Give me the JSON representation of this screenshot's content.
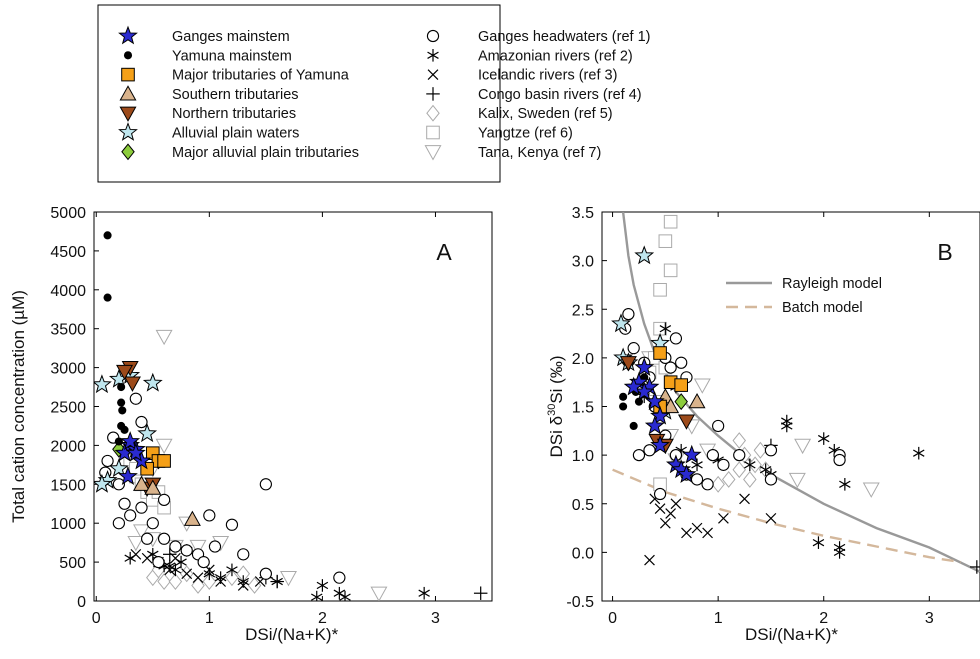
{
  "chart_data": [
    {
      "type": "scatter",
      "panel_label": "A",
      "xlabel": "DSi/(Na+K)*",
      "ylabel": "Total cation concentration (µM)",
      "xlim": [
        -0.02,
        3.5
      ],
      "ylim": [
        0,
        5000
      ],
      "xticks": [
        0,
        1,
        2,
        3
      ],
      "yticks": [
        0,
        500,
        1000,
        1500,
        2000,
        2500,
        3000,
        3500,
        4000,
        4500,
        5000
      ],
      "series": [
        {
          "name": "Ganges mainstem",
          "color": "#2a2ad0",
          "marker": "star",
          "x": [
            0.3,
            0.35,
            0.25,
            0.28,
            0.4,
            0.3,
            0.35
          ],
          "values": [
            2000,
            1950,
            1900,
            1600,
            1800,
            2050,
            1900
          ]
        },
        {
          "name": "Yamuna mainstem",
          "color": "#000000",
          "marker": "dot",
          "x": [
            0.1,
            0.1,
            0.22,
            0.22,
            0.23,
            0.22,
            0.25,
            0.2,
            0.28
          ],
          "values": [
            4700,
            3900,
            2750,
            2550,
            2450,
            2250,
            2200,
            2050,
            2000
          ]
        },
        {
          "name": "Major tributaries of Yamuna",
          "color": "#f5a018",
          "marker": "square",
          "x": [
            0.5,
            0.55,
            0.6,
            0.45
          ],
          "values": [
            1900,
            1800,
            1800,
            1700
          ]
        },
        {
          "name": "Southern tributaries",
          "color": "#d9b38c",
          "marker": "triangle-up",
          "x": [
            0.85,
            0.4,
            0.5
          ],
          "values": [
            1050,
            1500,
            1450
          ]
        },
        {
          "name": "Northern tributaries",
          "color": "#9c4a1a",
          "marker": "triangle-down",
          "x": [
            0.3,
            0.32,
            0.25,
            0.45,
            0.5
          ],
          "values": [
            3000,
            2800,
            2950,
            1450,
            1500
          ]
        },
        {
          "name": "Alluvial plain waters",
          "color": "#bfe6ee",
          "marker": "star",
          "x": [
            0.05,
            0.2,
            0.3,
            0.5,
            0.45,
            0.1,
            0.2,
            0.05
          ],
          "values": [
            2780,
            2850,
            2900,
            2800,
            2150,
            1550,
            1700,
            1500
          ]
        },
        {
          "name": "Major alluvial plain tributaries",
          "color": "#8ccc3c",
          "marker": "diamond",
          "x": [
            0.2,
            0.55
          ],
          "values": [
            1950,
            1800
          ]
        },
        {
          "name": "Ganges headwaters (ref 1)",
          "color": "#000000",
          "marker": "circle-open",
          "x": [
            0.15,
            0.1,
            0.08,
            0.2,
            0.25,
            0.2,
            0.3,
            0.4,
            0.5,
            0.6,
            0.7,
            0.8,
            0.9,
            0.95,
            1.0,
            1.05,
            1.2,
            1.5,
            1.3,
            1.5,
            2.15,
            0.35,
            0.4,
            0.6,
            0.45,
            0.55
          ],
          "values": [
            2100,
            1800,
            1650,
            1500,
            1250,
            1000,
            1100,
            1200,
            1000,
            800,
            700,
            650,
            600,
            500,
            1100,
            700,
            980,
            1500,
            600,
            350,
            300,
            2600,
            2300,
            1300,
            800,
            500
          ]
        },
        {
          "name": "Amazonian rivers (ref 2)",
          "color": "#000000",
          "marker": "asterisk",
          "x": [
            0.3,
            0.5,
            0.6,
            0.7,
            0.75,
            0.8,
            1.0,
            1.1,
            1.3,
            1.6,
            1.95,
            2.0,
            2.15,
            2.2,
            2.9,
            0.65,
            1.2
          ],
          "values": [
            550,
            600,
            450,
            400,
            500,
            650,
            350,
            300,
            250,
            250,
            50,
            200,
            100,
            50,
            100,
            450,
            400
          ]
        },
        {
          "name": "Icelandic rivers (ref 3)",
          "color": "#000000",
          "marker": "x",
          "x": [
            0.35,
            0.55,
            0.65,
            0.7,
            0.8,
            0.9,
            1.0,
            1.1,
            1.3,
            1.45,
            0.45
          ],
          "values": [
            600,
            500,
            400,
            550,
            350,
            300,
            400,
            250,
            200,
            250,
            550
          ]
        },
        {
          "name": "Congo basin rivers (ref 4)",
          "color": "#000000",
          "marker": "plus",
          "x": [
            3.4,
            1.5,
            1.6,
            0.65
          ],
          "values": [
            100,
            300,
            250,
            600
          ]
        },
        {
          "name": "Kalix, Sweden (ref 5)",
          "color": "#aaaaaa",
          "marker": "diamond-open",
          "x": [
            0.5,
            0.6,
            0.7,
            0.8,
            0.9,
            1.0,
            1.2,
            1.3,
            1.4,
            0.55
          ],
          "values": [
            300,
            250,
            250,
            350,
            200,
            250,
            300,
            350,
            200,
            400
          ]
        },
        {
          "name": "Yangtze (ref 6)",
          "color": "#aaaaaa",
          "marker": "square-open",
          "x": [
            0.3,
            0.35,
            0.4,
            0.45,
            0.5,
            0.55,
            0.6,
            0.4,
            0.35
          ],
          "values": [
            1800,
            1600,
            1500,
            1400,
            1300,
            1400,
            1200,
            1900,
            1700
          ]
        },
        {
          "name": "Tana, Kenya (ref 7)",
          "color": "#aaaaaa",
          "marker": "triangle-down-open",
          "x": [
            0.6,
            0.6,
            0.5,
            0.4,
            0.5,
            0.7,
            0.9,
            1.1,
            1.7,
            2.5,
            0.35,
            0.8
          ],
          "values": [
            3400,
            2000,
            1700,
            900,
            800,
            700,
            700,
            750,
            300,
            100,
            750,
            1000
          ]
        }
      ]
    },
    {
      "type": "scatter",
      "panel_label": "B",
      "xlabel": "DSi/(Na+K)*",
      "ylabel": [
        "DSi δ",
        "30",
        "Si (‰)"
      ],
      "xlim": [
        -0.1,
        3.48
      ],
      "ylim": [
        -0.5,
        3.5
      ],
      "xticks": [
        0,
        1,
        2,
        3
      ],
      "yticks": [
        -0.5,
        {
          "value": 0,
          "label": "0.0"
        },
        0.5,
        {
          "value": 1,
          "label": "1.0"
        },
        1.5,
        {
          "value": 2,
          "label": "2.0"
        },
        2.5,
        {
          "value": 3,
          "label": "3.0"
        },
        3.5
      ],
      "series": [
        {
          "x": [
            0.3,
            0.25,
            0.35,
            0.4,
            0.3,
            0.45,
            0.4,
            0.45,
            0.6,
            0.65,
            0.75,
            0.7,
            0.2
          ],
          "values": [
            1.9,
            1.75,
            1.7,
            1.55,
            1.65,
            1.4,
            1.3,
            1.1,
            0.9,
            0.85,
            1.0,
            0.8,
            1.7
          ]
        },
        {
          "x": [
            0.1,
            0.1,
            0.2,
            0.25,
            0.22,
            0.3
          ],
          "values": [
            1.6,
            1.5,
            1.3,
            1.55,
            1.65,
            1.8
          ]
        },
        {
          "x": [
            0.45,
            0.55,
            0.65,
            0.45
          ],
          "values": [
            2.05,
            1.75,
            1.72,
            1.5
          ]
        },
        {
          "x": [
            0.8,
            0.5,
            0.55
          ],
          "values": [
            1.55,
            1.6,
            1.5
          ]
        },
        {
          "x": [
            0.15,
            0.7,
            0.42,
            0.5
          ],
          "values": [
            1.95,
            1.35,
            1.15,
            1.1
          ]
        },
        {
          "x": [
            0.08,
            0.1,
            0.15,
            0.3,
            0.45,
            0.5
          ],
          "values": [
            2.35,
            2.0,
            1.95,
            3.05,
            2.15,
            1.45
          ]
        },
        {
          "x": [
            0.15,
            0.65
          ],
          "values": [
            1.95,
            1.55
          ]
        },
        {
          "x": [
            0.15,
            0.12,
            0.2,
            0.3,
            0.35,
            0.5,
            0.55,
            0.6,
            0.65,
            0.7,
            0.4,
            0.25,
            0.35,
            0.5,
            0.6,
            0.7,
            0.8,
            0.9,
            0.95,
            1.0,
            1.05,
            1.2,
            1.5,
            1.5,
            2.15,
            2.15,
            0.45
          ],
          "values": [
            2.45,
            2.3,
            2.1,
            1.95,
            1.8,
            2.0,
            1.9,
            2.2,
            1.95,
            1.8,
            1.5,
            1.0,
            1.05,
            1.2,
            1.0,
            0.8,
            0.75,
            0.7,
            1.0,
            1.3,
            0.9,
            1.0,
            1.05,
            0.75,
            1.0,
            0.95,
            0.6
          ]
        },
        {
          "x": [
            0.3,
            0.5,
            0.6,
            0.8,
            1.0,
            1.3,
            1.45,
            1.5,
            1.65,
            1.65,
            2.0,
            2.1,
            2.2,
            2.15,
            2.15,
            1.95,
            2.9,
            0.65
          ],
          "values": [
            1.6,
            2.3,
            1.7,
            0.9,
            0.95,
            0.9,
            0.85,
            0.8,
            1.35,
            1.3,
            1.17,
            1.05,
            0.7,
            0.05,
            0.0,
            0.1,
            1.02,
            1.05
          ]
        },
        {
          "x": [
            0.35,
            0.4,
            0.45,
            0.5,
            0.55,
            0.7,
            0.8,
            0.9,
            1.05,
            1.25,
            1.5,
            0.6
          ],
          "values": [
            -0.08,
            0.55,
            0.45,
            0.3,
            0.4,
            0.2,
            0.25,
            0.2,
            0.35,
            0.55,
            0.35,
            0.5
          ]
        },
        {
          "x": [
            1.5,
            3.45
          ],
          "values": [
            1.1,
            -0.15
          ]
        },
        {
          "x": [
            1.2,
            1.25,
            1.35,
            1.4,
            1.45,
            1.3,
            1.2,
            1.1,
            1.0
          ],
          "values": [
            1.15,
            1.0,
            0.9,
            1.05,
            0.85,
            0.75,
            0.85,
            0.75,
            0.7
          ]
        },
        {
          "x": [
            0.55,
            0.5,
            0.55,
            0.45,
            0.45,
            0.4,
            0.5,
            0.45,
            0.35
          ],
          "values": [
            3.4,
            3.2,
            2.9,
            2.7,
            2.3,
            2.0,
            1.9,
            0.7,
            1.85
          ]
        },
        {
          "x": [
            0.35,
            0.4,
            0.55,
            0.75,
            0.85,
            1.75,
            1.8,
            2.45,
            0.9,
            0.6
          ],
          "values": [
            2.0,
            1.55,
            1.2,
            1.3,
            1.72,
            0.75,
            1.1,
            0.65,
            1.05,
            0.95
          ]
        }
      ],
      "curves": [
        {
          "name": "Rayleigh model",
          "color": "#999999",
          "dash": "solid",
          "x": [
            0.1,
            0.15,
            0.2,
            0.3,
            0.4,
            0.5,
            0.6,
            0.8,
            1.0,
            1.2,
            1.5,
            2.0,
            2.5,
            3.0,
            3.48
          ],
          "values": [
            3.5,
            3.05,
            2.75,
            2.35,
            2.05,
            1.85,
            1.65,
            1.4,
            1.2,
            1.02,
            0.8,
            0.5,
            0.25,
            0.05,
            -0.2
          ]
        },
        {
          "name": "Batch model",
          "color": "#d4b89c",
          "dash": "dashed",
          "x": [
            0,
            0.5,
            1,
            1.5,
            2,
            2.5,
            3,
            3.3
          ],
          "values": [
            0.85,
            0.62,
            0.45,
            0.3,
            0.17,
            0.06,
            -0.05,
            -0.1
          ]
        }
      ]
    }
  ]
}
